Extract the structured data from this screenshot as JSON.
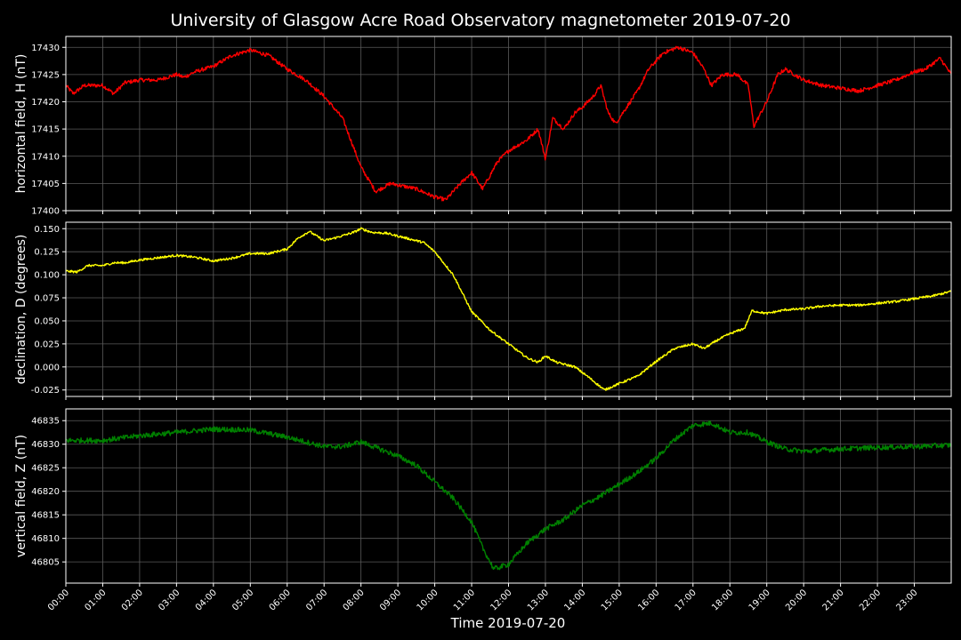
{
  "chart_data": {
    "type": "line",
    "title": "University of Glasgow Acre Road Observatory magnetometer 2019-07-20",
    "xlabel": "Time 2019-07-20",
    "x_tick_labels": [
      "00:00",
      "01:00",
      "02:00",
      "03:00",
      "04:00",
      "05:00",
      "06:00",
      "07:00",
      "08:00",
      "09:00",
      "10:00",
      "11:00",
      "12:00",
      "13:00",
      "14:00",
      "15:00",
      "16:00",
      "17:00",
      "18:00",
      "19:00",
      "20:00",
      "21:00",
      "22:00",
      "23:00"
    ],
    "xlim_hours": [
      0,
      24
    ],
    "grid": true,
    "background": "#000000",
    "panels": [
      {
        "ylabel": "horizontal field, H (nT)",
        "color": "#ff0000",
        "ylim": [
          17400,
          17432
        ],
        "y_ticks": [
          17400,
          17405,
          17410,
          17415,
          17420,
          17425,
          17430
        ],
        "noise": 0.35,
        "points": [
          [
            0,
            17423
          ],
          [
            0.2,
            17421.5
          ],
          [
            0.5,
            17423
          ],
          [
            1,
            17423
          ],
          [
            1.3,
            17421.5
          ],
          [
            1.6,
            17423.5
          ],
          [
            2,
            17424
          ],
          [
            2.5,
            17424
          ],
          [
            3,
            17425
          ],
          [
            3.2,
            17424.5
          ],
          [
            3.5,
            17425.5
          ],
          [
            4,
            17426.5
          ],
          [
            4.5,
            17428.5
          ],
          [
            5,
            17429.5
          ],
          [
            5.5,
            17428.5
          ],
          [
            6,
            17426
          ],
          [
            6.5,
            17424
          ],
          [
            7,
            17421
          ],
          [
            7.5,
            17417
          ],
          [
            8,
            17408
          ],
          [
            8.4,
            17403.5
          ],
          [
            8.8,
            17405
          ],
          [
            9.5,
            17404
          ],
          [
            10,
            17402.5
          ],
          [
            10.3,
            17402
          ],
          [
            10.7,
            17405
          ],
          [
            11,
            17407
          ],
          [
            11.3,
            17404
          ],
          [
            11.7,
            17409
          ],
          [
            12,
            17411
          ],
          [
            12.5,
            17413
          ],
          [
            12.8,
            17415
          ],
          [
            13,
            17409.5
          ],
          [
            13.2,
            17417
          ],
          [
            13.5,
            17415
          ],
          [
            13.8,
            17418
          ],
          [
            14,
            17419
          ],
          [
            14.3,
            17421
          ],
          [
            14.5,
            17423
          ],
          [
            14.7,
            17418
          ],
          [
            14.9,
            17416
          ],
          [
            15.1,
            17418
          ],
          [
            15.5,
            17422
          ],
          [
            15.8,
            17426
          ],
          [
            16.2,
            17429
          ],
          [
            16.6,
            17430
          ],
          [
            17,
            17429
          ],
          [
            17.3,
            17426
          ],
          [
            17.5,
            17423
          ],
          [
            17.8,
            17425
          ],
          [
            18.2,
            17425
          ],
          [
            18.5,
            17423
          ],
          [
            18.65,
            17415.5
          ],
          [
            19,
            17420
          ],
          [
            19.3,
            17425
          ],
          [
            19.5,
            17426
          ],
          [
            20,
            17424
          ],
          [
            20.5,
            17423
          ],
          [
            21,
            17422.5
          ],
          [
            21.5,
            17422
          ],
          [
            22,
            17423
          ],
          [
            22.5,
            17424
          ],
          [
            23,
            17425.5
          ],
          [
            23.3,
            17426
          ],
          [
            23.7,
            17428
          ],
          [
            24,
            17425
          ]
        ]
      },
      {
        "ylabel": "declination, D (degrees)",
        "color": "#ffff00",
        "ylim": [
          -0.032,
          0.157
        ],
        "y_ticks": [
          -0.025,
          0.0,
          0.025,
          0.05,
          0.075,
          0.1,
          0.125,
          0.15
        ],
        "tick_decimals": 3,
        "noise": 0.0012,
        "points": [
          [
            0,
            0.104
          ],
          [
            0.3,
            0.103
          ],
          [
            0.6,
            0.11
          ],
          [
            1,
            0.11
          ],
          [
            1.3,
            0.113
          ],
          [
            1.6,
            0.113
          ],
          [
            2,
            0.116
          ],
          [
            2.4,
            0.118
          ],
          [
            3,
            0.121
          ],
          [
            3.5,
            0.119
          ],
          [
            4,
            0.115
          ],
          [
            4.5,
            0.118
          ],
          [
            5,
            0.123
          ],
          [
            5.5,
            0.123
          ],
          [
            6,
            0.128
          ],
          [
            6.3,
            0.14
          ],
          [
            6.6,
            0.147
          ],
          [
            7,
            0.137
          ],
          [
            7.3,
            0.14
          ],
          [
            7.8,
            0.146
          ],
          [
            8,
            0.15
          ],
          [
            8.3,
            0.146
          ],
          [
            8.7,
            0.145
          ],
          [
            9.2,
            0.14
          ],
          [
            9.7,
            0.135
          ],
          [
            10,
            0.125
          ],
          [
            10.5,
            0.1
          ],
          [
            11,
            0.06
          ],
          [
            11.5,
            0.04
          ],
          [
            12,
            0.025
          ],
          [
            12.5,
            0.01
          ],
          [
            12.8,
            0.005
          ],
          [
            13,
            0.012
          ],
          [
            13.3,
            0.005
          ],
          [
            13.8,
            0.0
          ],
          [
            14.2,
            -0.012
          ],
          [
            14.6,
            -0.025
          ],
          [
            15,
            -0.018
          ],
          [
            15.5,
            -0.01
          ],
          [
            16,
            0.006
          ],
          [
            16.5,
            0.02
          ],
          [
            17,
            0.025
          ],
          [
            17.3,
            0.02
          ],
          [
            17.7,
            0.03
          ],
          [
            18,
            0.036
          ],
          [
            18.4,
            0.042
          ],
          [
            18.6,
            0.061
          ],
          [
            19,
            0.058
          ],
          [
            19.5,
            0.062
          ],
          [
            20,
            0.063
          ],
          [
            20.5,
            0.066
          ],
          [
            21,
            0.067
          ],
          [
            21.5,
            0.067
          ],
          [
            22,
            0.069
          ],
          [
            22.5,
            0.071
          ],
          [
            23,
            0.074
          ],
          [
            23.5,
            0.077
          ],
          [
            24,
            0.082
          ]
        ]
      },
      {
        "ylabel": "vertical field, Z (nT)",
        "color": "#008000",
        "ylim": [
          46800.5,
          46837.5
        ],
        "y_ticks": [
          46805,
          46810,
          46815,
          46820,
          46825,
          46830,
          46835
        ],
        "noise": 0.55,
        "points": [
          [
            0,
            46830.8
          ],
          [
            1,
            46830.8
          ],
          [
            2,
            46831.8
          ],
          [
            3,
            46832.5
          ],
          [
            4,
            46833.2
          ],
          [
            5,
            46833
          ],
          [
            6,
            46831.5
          ],
          [
            6.5,
            46830.5
          ],
          [
            7,
            46829.5
          ],
          [
            7.5,
            46829.5
          ],
          [
            8,
            46830.5
          ],
          [
            8.5,
            46829
          ],
          [
            9,
            46827.5
          ],
          [
            9.5,
            46825.5
          ],
          [
            10,
            46822
          ],
          [
            10.5,
            46818.5
          ],
          [
            11,
            46813.5
          ],
          [
            11.3,
            46808
          ],
          [
            11.6,
            46803.5
          ],
          [
            12,
            46804.5
          ],
          [
            12.5,
            46809
          ],
          [
            13,
            46812
          ],
          [
            13.5,
            46814
          ],
          [
            14,
            46817
          ],
          [
            14.5,
            46819
          ],
          [
            15,
            46821.5
          ],
          [
            15.5,
            46824
          ],
          [
            16,
            46827
          ],
          [
            16.5,
            46831
          ],
          [
            17,
            46834
          ],
          [
            17.5,
            46834.5
          ],
          [
            18,
            46832.5
          ],
          [
            18.5,
            46832.5
          ],
          [
            19,
            46830.5
          ],
          [
            19.5,
            46829
          ],
          [
            20,
            46828.5
          ],
          [
            21,
            46829
          ],
          [
            22,
            46829.3
          ],
          [
            23,
            46829.5
          ],
          [
            24,
            46829.8
          ]
        ]
      }
    ]
  }
}
